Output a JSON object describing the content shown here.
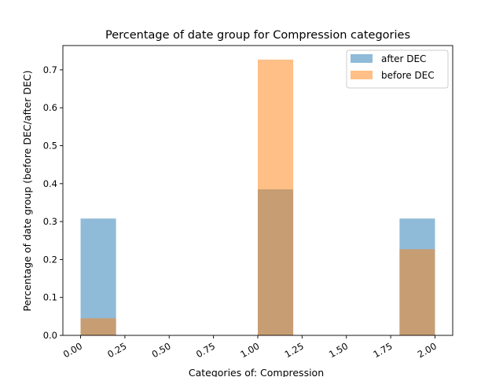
{
  "chart_data": {
    "type": "bar",
    "title": "Percentage of date group for Compression  categories",
    "xlabel": "Categories of: Compression",
    "ylabel": "Percentage of date group (before DEC/after DEC)",
    "xlim": [
      -0.1,
      2.1
    ],
    "ylim": [
      0,
      0.764
    ],
    "xticks": [
      0.0,
      0.25,
      0.5,
      0.75,
      1.0,
      1.25,
      1.5,
      1.75,
      2.0
    ],
    "xtick_labels": [
      "0.00",
      "0.25",
      "0.50",
      "0.75",
      "1.00",
      "1.25",
      "1.50",
      "1.75",
      "2.00"
    ],
    "xtick_rotation": 30,
    "yticks": [
      0.0,
      0.1,
      0.2,
      0.3,
      0.4,
      0.5,
      0.6,
      0.7
    ],
    "ytick_labels": [
      "0.0",
      "0.1",
      "0.2",
      "0.3",
      "0.4",
      "0.5",
      "0.6",
      "0.7"
    ],
    "bin_width": 0.2,
    "grid": false,
    "legend_position": "top-right",
    "series": [
      {
        "name": "after DEC",
        "color": "#1f77b4",
        "opacity": 0.5,
        "bins": [
          {
            "x0": 0.0,
            "x1": 0.2,
            "y": 0.308
          },
          {
            "x0": 1.0,
            "x1": 1.2,
            "y": 0.385
          },
          {
            "x0": 1.8,
            "x1": 2.0,
            "y": 0.308
          }
        ]
      },
      {
        "name": "before DEC",
        "color": "#ff7f0e",
        "opacity": 0.5,
        "bins": [
          {
            "x0": 0.0,
            "x1": 0.2,
            "y": 0.045
          },
          {
            "x0": 1.0,
            "x1": 1.2,
            "y": 0.727
          },
          {
            "x0": 1.8,
            "x1": 2.0,
            "y": 0.227
          }
        ]
      }
    ]
  }
}
